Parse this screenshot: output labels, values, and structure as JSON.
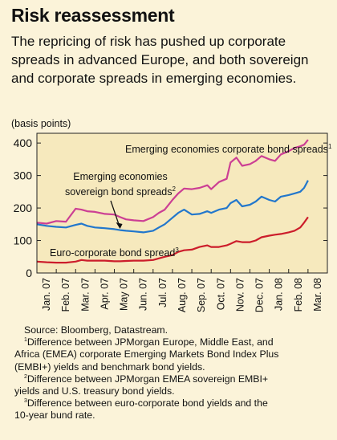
{
  "title": "Risk reassessment",
  "subtitle": "The repricing of risk has pushed up corporate spreads in advanced Europe, and both sovereign and corporate spreads in emerging economies.",
  "chart_data": {
    "type": "line",
    "unit_label": "(basis points)",
    "ylim": [
      0,
      430
    ],
    "yticks": [
      0,
      100,
      200,
      300,
      400
    ],
    "x_tick_labels": [
      "Jan. 07",
      "Feb. 07",
      "Mar. 07",
      "Apr. 07",
      "May 07",
      "Jun. 07",
      "Jul. 07",
      "Aug. 07",
      "Sep. 07",
      "Oct. 07",
      "Nov. 07",
      "Dec. 07",
      "Jan. 08",
      "Feb. 08",
      "Mar. 08"
    ],
    "x": [
      0,
      0.5,
      1,
      1.5,
      2,
      2.3,
      2.6,
      3,
      3.5,
      4,
      4.3,
      4.6,
      5,
      5.5,
      6,
      6.3,
      6.6,
      7,
      7.3,
      7.6,
      8,
      8.4,
      8.8,
      9,
      9.4,
      9.8,
      10,
      10.3,
      10.6,
      11,
      11.3,
      11.6,
      12,
      12.3,
      12.6,
      13,
      13.3,
      13.6,
      13.8,
      14
    ],
    "series": [
      {
        "name": "Emerging economies corporate bond spreads",
        "footnote": "1",
        "color": "#cc3f94",
        "values": [
          155,
          152,
          160,
          158,
          198,
          195,
          190,
          188,
          182,
          180,
          172,
          165,
          162,
          160,
          172,
          185,
          195,
          225,
          245,
          260,
          258,
          262,
          270,
          258,
          280,
          290,
          340,
          355,
          330,
          335,
          345,
          360,
          350,
          345,
          365,
          375,
          385,
          390,
          395,
          410
        ]
      },
      {
        "name": "Emerging economies sovereign bond spreads",
        "footnote": "2",
        "color": "#2277cc",
        "values": [
          150,
          145,
          142,
          140,
          148,
          152,
          145,
          140,
          138,
          135,
          132,
          130,
          128,
          125,
          130,
          140,
          150,
          170,
          185,
          195,
          180,
          182,
          190,
          185,
          195,
          200,
          215,
          225,
          205,
          210,
          220,
          235,
          225,
          220,
          235,
          240,
          245,
          250,
          262,
          285
        ]
      },
      {
        "name": "Euro-corporate bond spread",
        "footnote": "3",
        "color": "#cc1d2b",
        "values": [
          35,
          33,
          32,
          32,
          35,
          40,
          38,
          38,
          38,
          36,
          36,
          37,
          38,
          38,
          40,
          45,
          50,
          55,
          65,
          70,
          72,
          80,
          85,
          80,
          80,
          85,
          90,
          98,
          95,
          95,
          100,
          110,
          115,
          118,
          120,
          125,
          130,
          140,
          155,
          172
        ]
      }
    ],
    "series_labels": [
      {
        "series": 0,
        "text": "Emerging economies corporate bond spreads",
        "sup": "1"
      },
      {
        "series": 1,
        "text_line1": "Emerging economies",
        "text_line2": "sovereign bond spreads",
        "sup": "2"
      },
      {
        "series": 2,
        "text": "Euro-corporate bond spread",
        "sup": "3"
      }
    ],
    "grid": false,
    "legend": "inline labels"
  },
  "notes": {
    "source": "Source: Bloomberg, Datastream.",
    "fn1_mark": "1",
    "fn1": "Difference between JPMorgan Europe, Middle East, and",
    "fn1_cont1": "Africa (EMEA) corporate Emerging Markets Bond Index Plus",
    "fn1_cont2": "(EMBI+) yields and benchmark bond yields.",
    "fn2_mark": "2",
    "fn2": "Difference between JPMorgan EMEA sovereign EMBI+",
    "fn2_cont": "yields and U.S. treasury bond yields.",
    "fn3_mark": "3",
    "fn3": "Difference between euro-corporate bond yields and the",
    "fn3_cont": "10-year bund rate."
  }
}
